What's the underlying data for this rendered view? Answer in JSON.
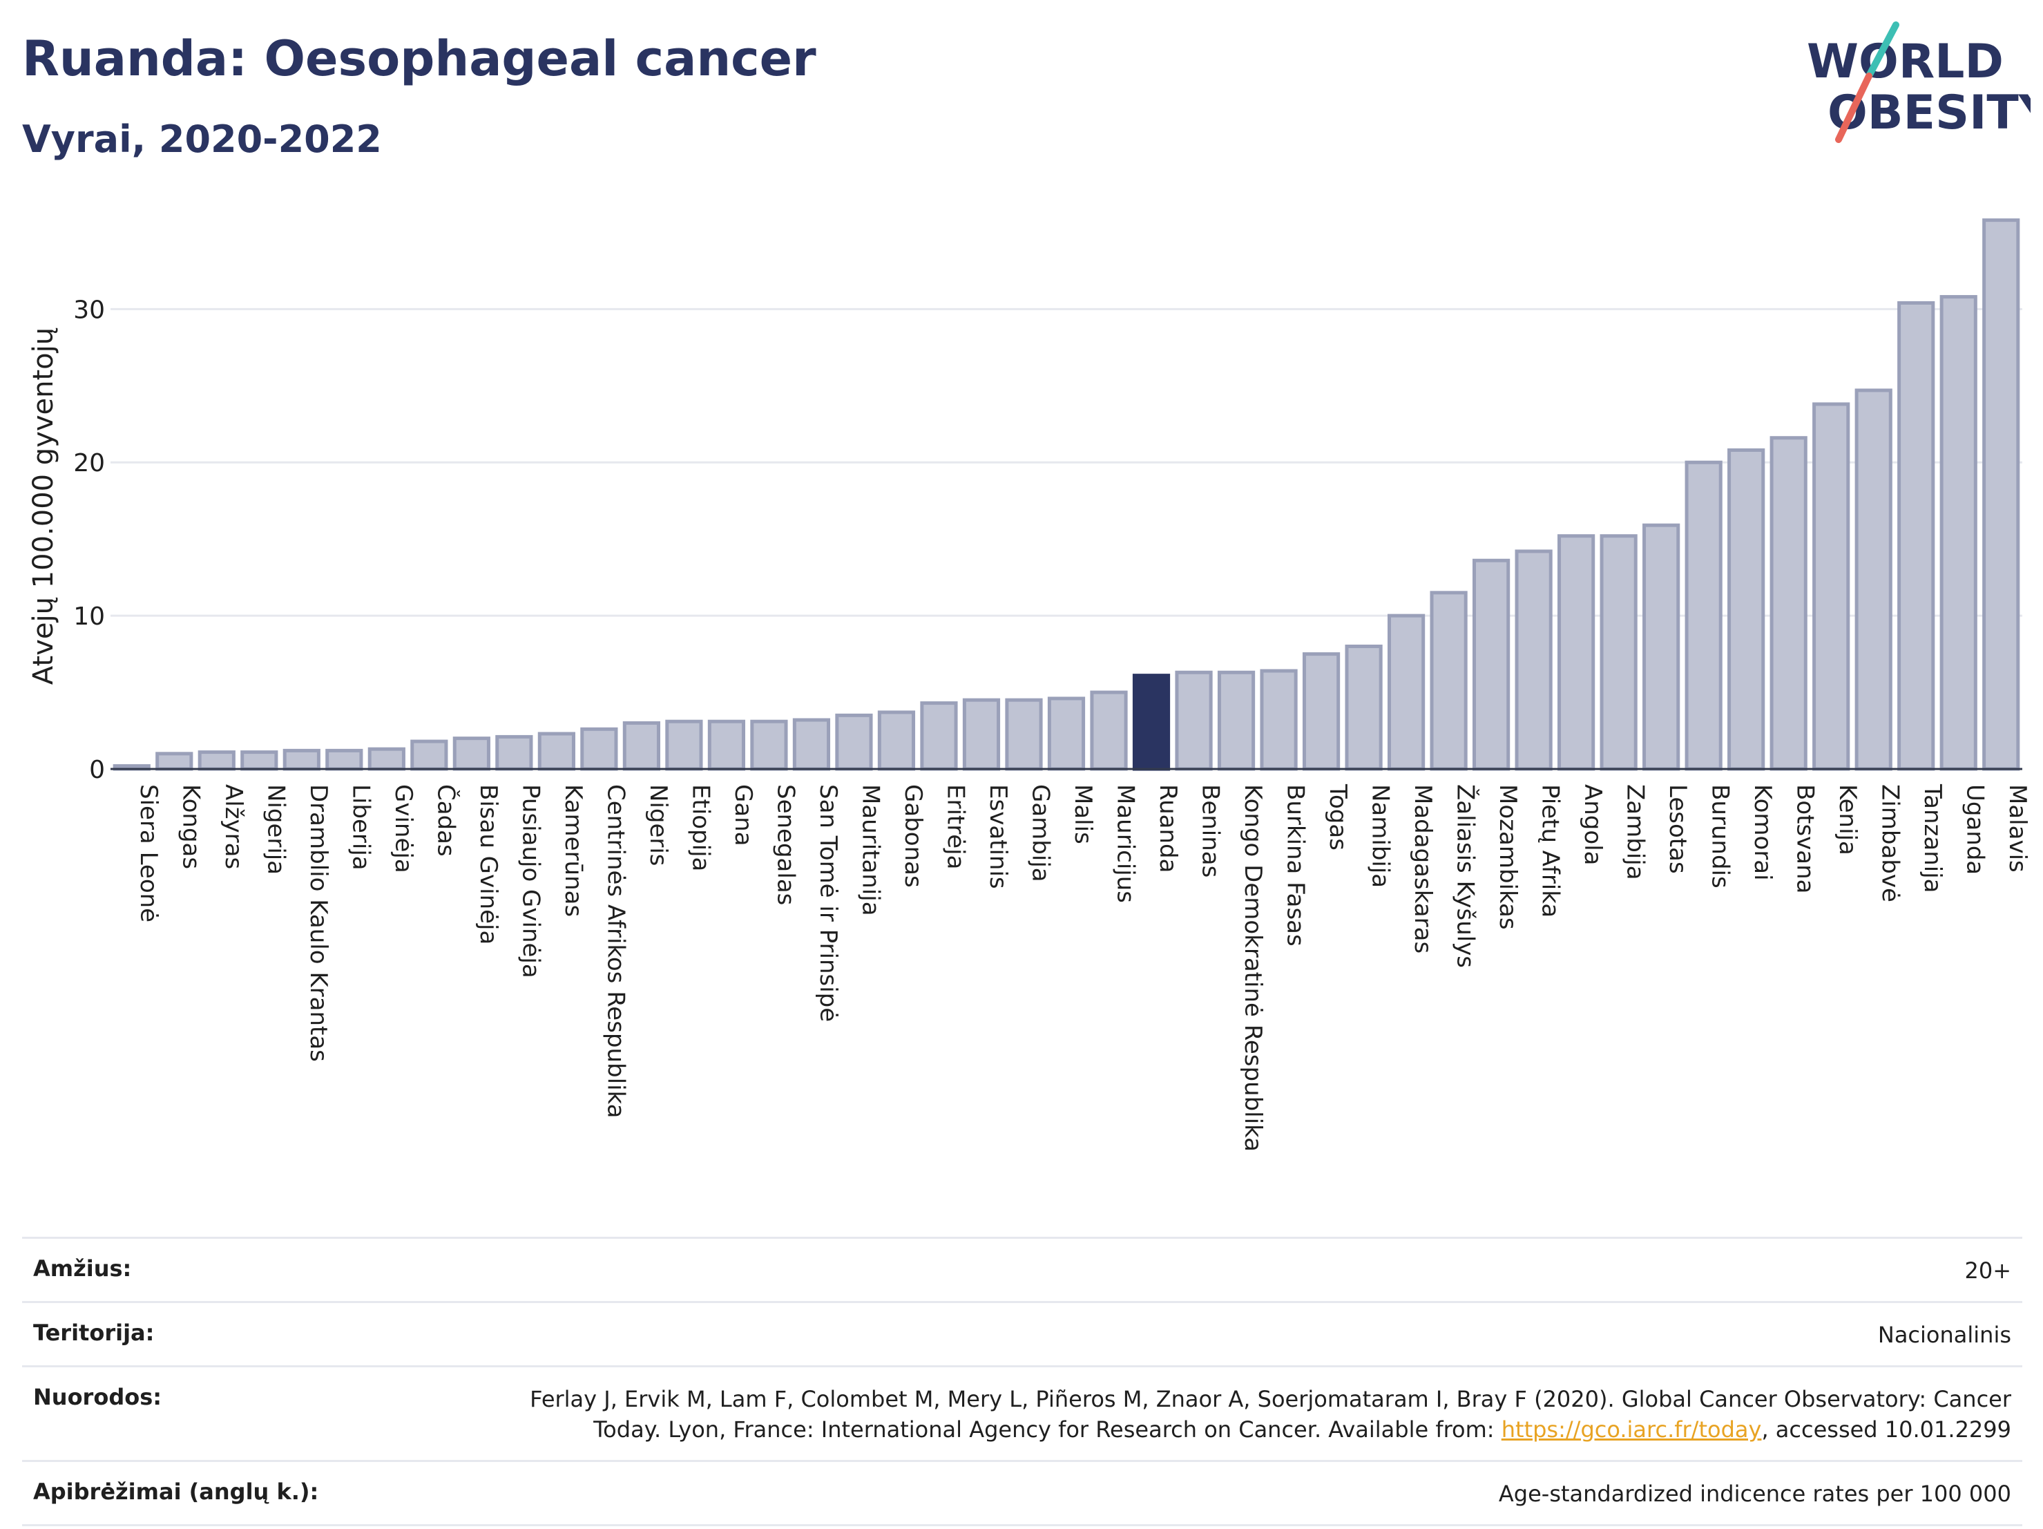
{
  "header": {
    "title": "Ruanda: Oesophageal cancer",
    "subtitle": "Vyrai, 2020-2022"
  },
  "logo": {
    "line1": "WORLD",
    "line2": "OBESITY",
    "accent_colors": [
      "#3dbfb4",
      "#e8665a"
    ]
  },
  "chart_data": {
    "type": "bar",
    "ylabel": "Atvejų 100.000 gyventojų",
    "ylim": [
      0,
      37
    ],
    "yticks": [
      0,
      10,
      20,
      30
    ],
    "grid": true,
    "highlight": "Ruanda",
    "colors": {
      "bar": "#bfc3d3",
      "bar_edge": "#9aa0b9",
      "highlight": "#2a3461"
    },
    "categories": [
      "Siera Leonė",
      "Kongas",
      "Alžyras",
      "Nigerija",
      "Dramblio Kaulo Krantas",
      "Liberija",
      "Gvinėja",
      "Čadas",
      "Bisau Gvinėja",
      "Pusiaujo Gvinėja",
      "Kamerūnas",
      "Centrinės Afrikos Respublika",
      "Nigeris",
      "Etiopija",
      "Gana",
      "Senegalas",
      "San Tomė ir Prinsipė",
      "Mauritanija",
      "Gabonas",
      "Eritrėja",
      "Esvatinis",
      "Gambija",
      "Malis",
      "Mauricijus",
      "Ruanda",
      "Beninas",
      "Kongo Demokratinė Respublika",
      "Burkina Fasas",
      "Togas",
      "Namibija",
      "Madagaskaras",
      "Žaliasis Kyšulys",
      "Mozambikas",
      "Pietų Afrika",
      "Angola",
      "Zambija",
      "Lesotas",
      "Burundis",
      "Komorai",
      "Botsvana",
      "Kenija",
      "Zimbabvė",
      "Tanzanija",
      "Uganda",
      "Malavis"
    ],
    "values": [
      0.2,
      1.0,
      1.1,
      1.1,
      1.2,
      1.2,
      1.3,
      1.8,
      2.0,
      2.1,
      2.3,
      2.6,
      3.0,
      3.1,
      3.1,
      3.1,
      3.2,
      3.5,
      3.7,
      4.3,
      4.5,
      4.5,
      4.6,
      5.0,
      6.1,
      6.3,
      6.3,
      6.4,
      7.5,
      8.0,
      10.0,
      11.5,
      13.6,
      14.2,
      15.2,
      15.2,
      15.9,
      20.0,
      20.8,
      21.6,
      23.8,
      24.7,
      30.4,
      30.8,
      35.8
    ]
  },
  "info": [
    {
      "label": "Amžius:",
      "value": "20+"
    },
    {
      "label": "Teritorija:",
      "value": "Nacionalinis"
    },
    {
      "label": "Nuorodos:",
      "value_line1": "Ferlay J, Ervik M, Lam F, Colombet M, Mery L, Piñeros M, Znaor A, Soerjomataram I, Bray F (2020). Global Cancer Observatory: Cancer",
      "value_line2_pre": "Today. Lyon, France: International Agency for Research on Cancer. Available from: ",
      "link": "https://gco.iarc.fr/today",
      "value_line2_post": ", accessed 10.01.2299"
    },
    {
      "label": "Apibrėžimai (anglų k.):",
      "value": "Age-standardized indicence rates per 100 000"
    }
  ]
}
